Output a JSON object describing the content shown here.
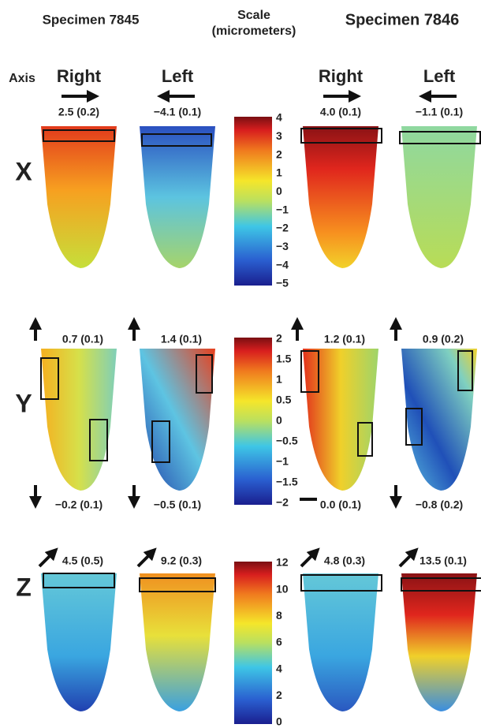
{
  "header": {
    "specimen_left": "Specimen 7845",
    "scale_title": "Scale",
    "scale_unit": "(micrometers)",
    "specimen_right": "Specimen 7846",
    "axis_label": "Axis"
  },
  "directions": [
    "Right",
    "Left",
    "Right",
    "Left"
  ],
  "rows": [
    {
      "axis": "X",
      "labels": [
        "2.5 (0.2)",
        "−4.1 (0.1)",
        "4.0 (0.1)",
        "−1.1 (0.1)"
      ],
      "scale_ticks": [
        "4",
        "3",
        "2",
        "1",
        "0",
        "−1",
        "−2",
        "−3",
        "−4",
        "−5"
      ]
    },
    {
      "axis": "Y",
      "labels": [
        "0.7 (0.1)",
        "1.4 (0.1)",
        "1.2 (0.1)",
        "0.9 (0.2)"
      ],
      "bottom_labels": [
        "−0.2 (0.1)",
        "−0.5 (0.1)",
        "0.0 (0.1)",
        "−0.8 (0.2)"
      ],
      "scale_ticks": [
        "2",
        "1.5",
        "1",
        "0.5",
        "0",
        "−0.5",
        "−1",
        "−1.5",
        "−2"
      ]
    },
    {
      "axis": "Z",
      "labels": [
        "4.5 (0.5)",
        "9.2 (0.3)",
        "4.8 (0.3)",
        "13.5 (0.1)"
      ],
      "scale_ticks": [
        "12",
        "10",
        "8",
        "6",
        "4",
        "2",
        "0"
      ]
    }
  ]
}
